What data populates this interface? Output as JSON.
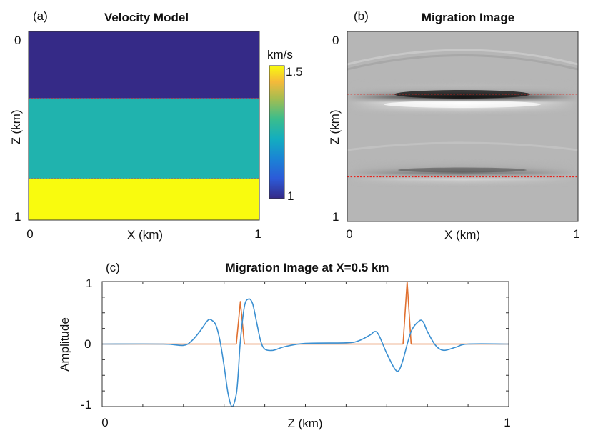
{
  "chart_data": [
    {
      "id": "a",
      "type": "heatmap",
      "panel_label": "(a)",
      "title": "Velocity Model",
      "xlabel": "X (km)",
      "ylabel": "Z (km)",
      "x_ticks": [
        "0",
        "1"
      ],
      "y_ticks": [
        "0",
        "1"
      ],
      "xlim": [
        0,
        1
      ],
      "ylim": [
        0,
        1
      ],
      "layers": [
        {
          "z_top": 0.0,
          "z_bottom": 0.355,
          "velocity_km_s": 1.0
        },
        {
          "z_top": 0.355,
          "z_bottom": 0.78,
          "velocity_km_s": 1.25
        },
        {
          "z_top": 0.78,
          "z_bottom": 1.0,
          "velocity_km_s": 1.5
        }
      ],
      "colorbar": {
        "label": "km/s",
        "ticks": [
          "1.5",
          "1"
        ],
        "range": [
          1.0,
          1.5
        ]
      }
    },
    {
      "id": "b",
      "type": "heatmap",
      "panel_label": "(b)",
      "title": "Migration Image",
      "xlabel": "X (km)",
      "ylabel": "Z (km)",
      "x_ticks": [
        "0",
        "1"
      ],
      "y_ticks": [
        "0",
        "1"
      ],
      "xlim": [
        0,
        1
      ],
      "ylim": [
        0,
        1
      ],
      "reflector_depths_km": [
        0.33,
        0.765
      ]
    },
    {
      "id": "c",
      "type": "line",
      "panel_label": "(c)",
      "title": "Migration Image at X=0.5 km",
      "xlabel": "Z (km)",
      "ylabel": "Amplitude",
      "x_ticks": [
        "0",
        "1"
      ],
      "y_ticks": [
        "1",
        "0",
        "-1"
      ],
      "xlim": [
        0,
        1
      ],
      "ylim": [
        -1,
        1
      ],
      "series": [
        {
          "name": "migration image",
          "color": "#3a8fd1",
          "x": [
            0,
            0.15,
            0.2,
            0.22,
            0.24,
            0.26,
            0.27,
            0.28,
            0.29,
            0.3,
            0.31,
            0.32,
            0.33,
            0.335,
            0.34,
            0.35,
            0.36,
            0.37,
            0.38,
            0.39,
            0.4,
            0.42,
            0.45,
            0.5,
            0.6,
            0.63,
            0.66,
            0.67,
            0.68,
            0.7,
            0.72,
            0.73,
            0.74,
            0.76,
            0.78,
            0.79,
            0.8,
            0.82,
            0.84,
            0.87,
            0.9,
            1.0
          ],
          "y": [
            0,
            0,
            -0.02,
            0.05,
            0.2,
            0.38,
            0.38,
            0.3,
            0.05,
            -0.35,
            -0.8,
            -1.0,
            -0.8,
            -0.45,
            0.05,
            0.6,
            0.72,
            0.65,
            0.35,
            0.05,
            -0.08,
            -0.1,
            -0.04,
            0.01,
            0.02,
            0.05,
            0.15,
            0.2,
            0.15,
            -0.15,
            -0.4,
            -0.42,
            -0.25,
            0.2,
            0.37,
            0.35,
            0.2,
            -0.02,
            -0.1,
            -0.05,
            0,
            0
          ]
        },
        {
          "name": "reflectivity",
          "color": "#e07030",
          "x": [
            0,
            0.33,
            0.34,
            0.35,
            0.74,
            0.75,
            0.76,
            1.0
          ],
          "y": [
            0,
            0,
            0.68,
            0,
            0,
            1.0,
            0,
            0
          ]
        }
      ]
    }
  ]
}
